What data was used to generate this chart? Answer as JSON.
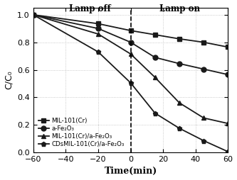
{
  "title": "",
  "xlabel": "Time(min)",
  "ylabel": "C/C₀",
  "xlim": [
    -60,
    60
  ],
  "ylim": [
    0.0,
    1.05
  ],
  "yticks": [
    0.0,
    0.2,
    0.4,
    0.6,
    0.8,
    1.0
  ],
  "xticks": [
    -60,
    -40,
    -20,
    0,
    20,
    40,
    60
  ],
  "lamp_off_label": "Lamp off",
  "lamp_on_label": "Lamp on",
  "series": [
    {
      "label": "MIL-101(Cr)",
      "marker": "s",
      "x": [
        -60,
        -20,
        0,
        15,
        30,
        45,
        60
      ],
      "y": [
        1.0,
        0.935,
        0.885,
        0.855,
        0.825,
        0.8,
        0.765
      ]
    },
    {
      "label": "a-Fe₂O₃",
      "marker": "o",
      "x": [
        -60,
        -20,
        0,
        15,
        30,
        45,
        60
      ],
      "y": [
        1.0,
        0.9,
        0.8,
        0.69,
        0.645,
        0.605,
        0.565
      ]
    },
    {
      "label": "MIL-101(Cr)/a-Fe₂O₃",
      "marker": "^",
      "x": [
        -60,
        -20,
        0,
        15,
        30,
        45,
        60
      ],
      "y": [
        1.0,
        0.86,
        0.715,
        0.545,
        0.36,
        0.25,
        0.21
      ]
    },
    {
      "label": "CDsMIL-101(Cr)/a-Fe₂O₃",
      "marker": "p",
      "x": [
        -60,
        -20,
        0,
        15,
        30,
        45,
        60
      ],
      "y": [
        1.0,
        0.73,
        0.505,
        0.285,
        0.175,
        0.085,
        0.005
      ]
    }
  ],
  "line_color": "#1a1a1a",
  "marker_size": 5,
  "line_width": 1.3,
  "background_color": "#ffffff",
  "grid_color": "#bbbbbb"
}
